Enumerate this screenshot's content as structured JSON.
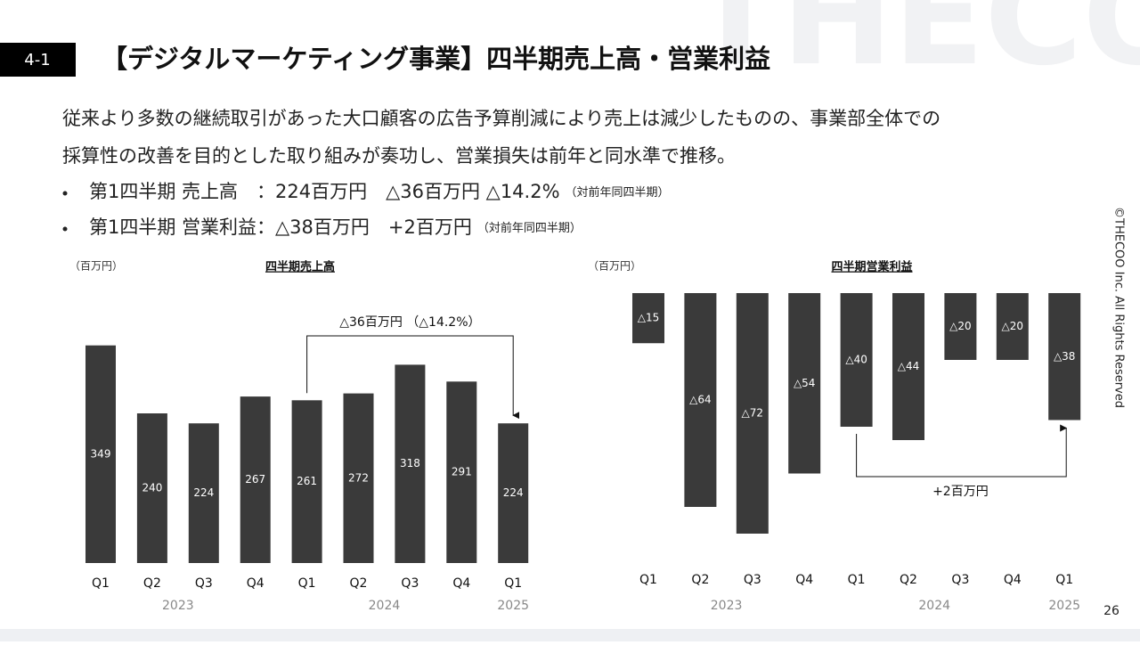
{
  "slide": {
    "section": "4-1",
    "title": "【デジタルマーケティング事業】四半期売上高・営業利益",
    "watermark": "THECOO",
    "body": [
      "従来より多数の継続取引があった大口顧客の広告予算削減により売上は減少したものの、事業部全体での",
      "採算性の改善を目的とした取り組みが奏功し、営業損失は前年と同水準で推移。"
    ],
    "bullets": [
      {
        "text": "第1四半期 売上高　：224百万円　△36百万円 △14.2%",
        "note": "（対前年同四半期）"
      },
      {
        "text": "第1四半期 営業利益：△38百万円　+2百万円",
        "note": "（対前年同四半期）"
      }
    ],
    "copyright": "©THECOO Inc.  All Rights Reserved",
    "page": "26"
  },
  "chart_data": [
    {
      "type": "bar",
      "title": "四半期売上高",
      "unit": "（百万円）",
      "color": "#3a3a3a",
      "ylim": [
        0,
        400
      ],
      "annotation": "△36百万円 （△14.2%）",
      "groups": [
        {
          "name": "2023",
          "categories": [
            "Q1",
            "Q2",
            "Q3",
            "Q4"
          ],
          "values": [
            349,
            240,
            224,
            267
          ]
        },
        {
          "name": "2024",
          "categories": [
            "Q1",
            "Q2",
            "Q3",
            "Q4"
          ],
          "values": [
            261,
            272,
            318,
            291
          ]
        },
        {
          "name": "2025",
          "categories": [
            "Q1"
          ],
          "values": [
            224
          ]
        }
      ]
    },
    {
      "type": "bar",
      "title": "四半期営業利益",
      "unit": "（百万円）",
      "color": "#3a3a3a",
      "ylim": [
        -80,
        0
      ],
      "annotation": "+2百万円",
      "groups": [
        {
          "name": "2023",
          "categories": [
            "Q1",
            "Q2",
            "Q3",
            "Q4"
          ],
          "values": [
            -15,
            -64,
            -72,
            -54
          ],
          "value_labels": [
            "△15",
            "△64",
            "△72",
            "△54"
          ]
        },
        {
          "name": "2024",
          "categories": [
            "Q1",
            "Q2",
            "Q3",
            "Q4"
          ],
          "values": [
            -40,
            -44,
            -20,
            -20
          ],
          "value_labels": [
            "△40",
            "△44",
            "△20",
            "△20"
          ]
        },
        {
          "name": "2025",
          "categories": [
            "Q1"
          ],
          "values": [
            -38
          ],
          "value_labels": [
            "△38"
          ]
        }
      ]
    }
  ]
}
